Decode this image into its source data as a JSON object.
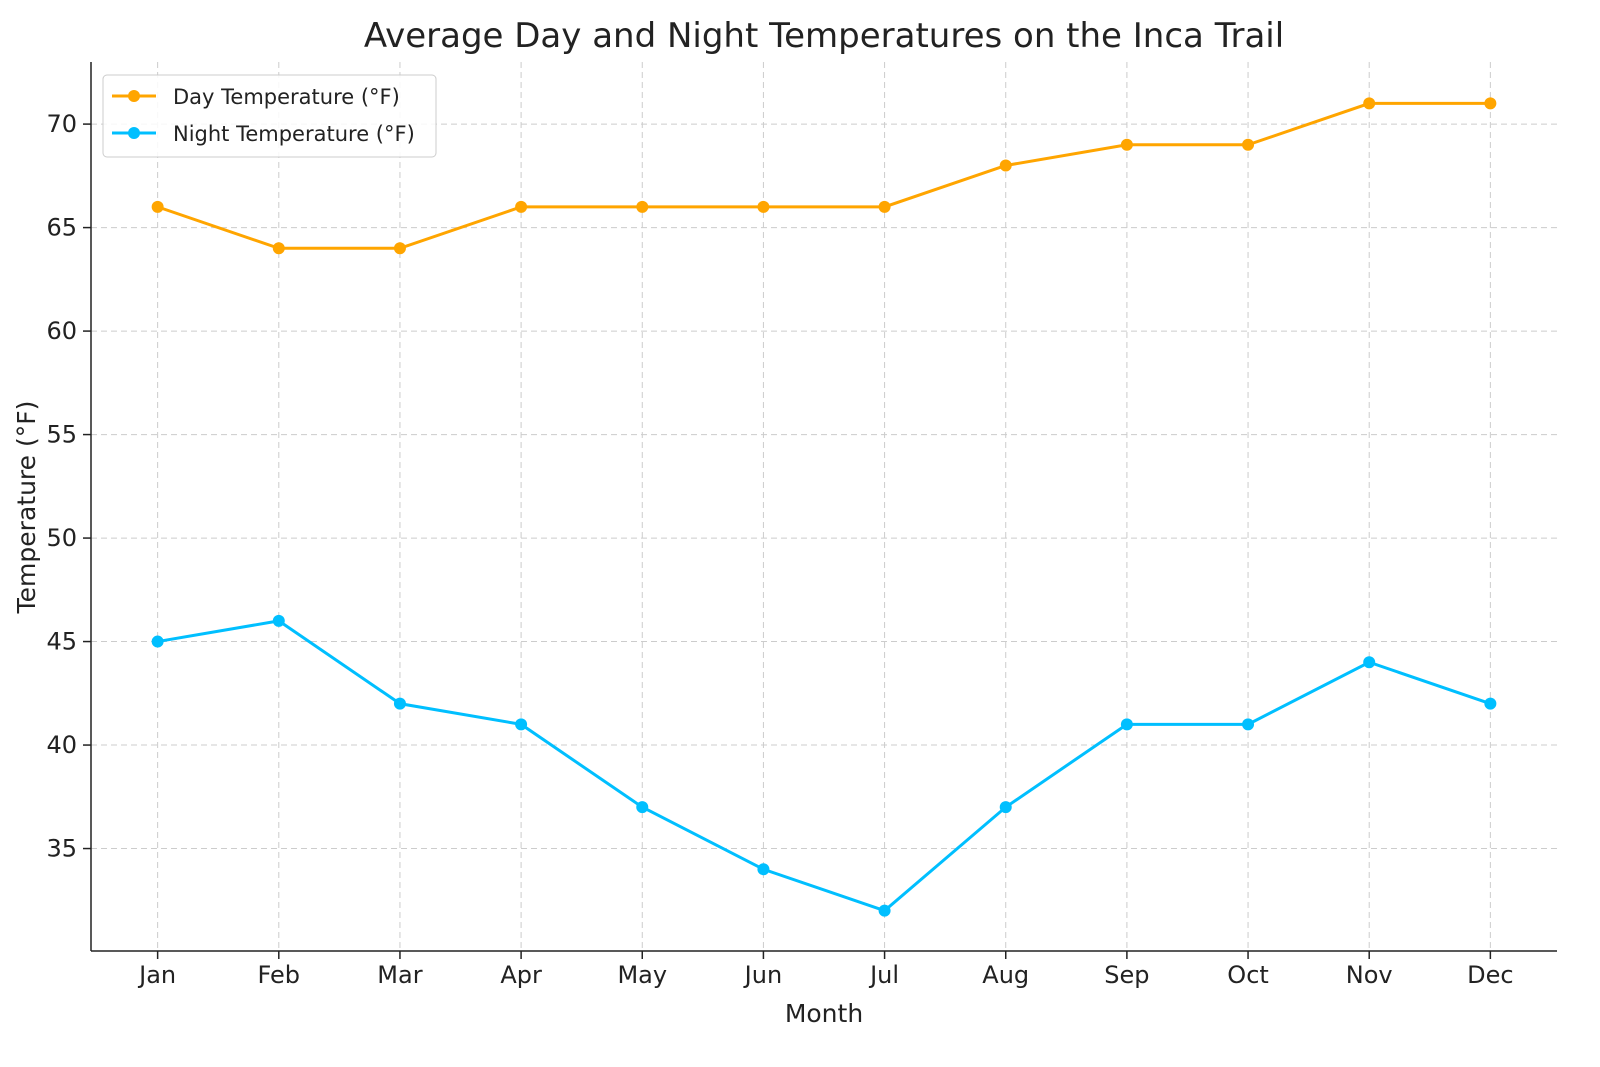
{
  "chart_data": {
    "type": "line",
    "title": "Average Day and Night Temperatures on the Inca Trail",
    "xlabel": "Month",
    "ylabel": "Temperature (°F)",
    "categories": [
      "Jan",
      "Feb",
      "Mar",
      "Apr",
      "May",
      "Jun",
      "Jul",
      "Aug",
      "Sep",
      "Oct",
      "Nov",
      "Dec"
    ],
    "yticks": [
      35,
      40,
      45,
      50,
      55,
      60,
      65,
      70
    ],
    "ylim": [
      30.05,
      73
    ],
    "grid": true,
    "legend_position": "top-left",
    "series": [
      {
        "name": "Day Temperature (°F)",
        "color": "#FFA500",
        "values": [
          66,
          64,
          64,
          66,
          66,
          66,
          66,
          68,
          69,
          69,
          71,
          71
        ]
      },
      {
        "name": "Night Temperature (°F)",
        "color": "#00BFFF",
        "values": [
          45,
          46,
          42,
          41,
          37,
          34,
          32,
          37,
          41,
          41,
          44,
          42
        ]
      }
    ]
  }
}
